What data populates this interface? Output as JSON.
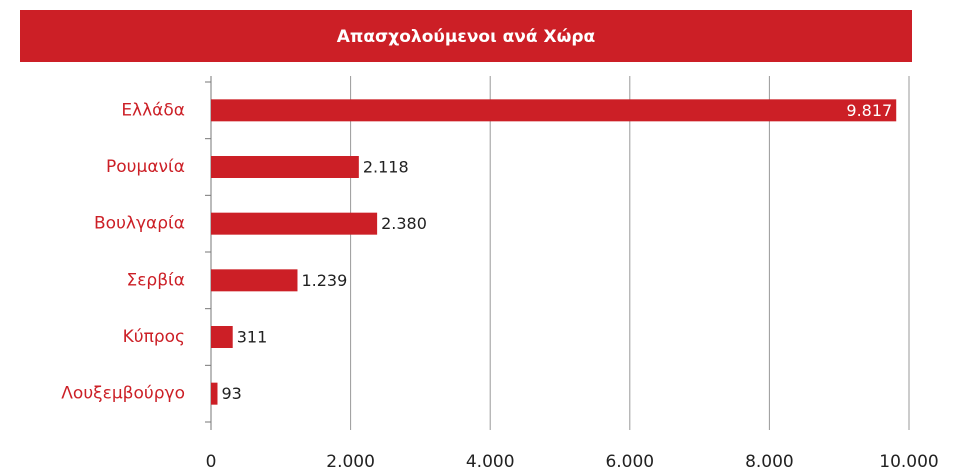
{
  "chart_data": {
    "type": "bar",
    "orientation": "horizontal",
    "title": "Απασχολούμενοι ανά Χώρα",
    "categories": [
      "Ελλάδα",
      "Ρουμανία",
      "Βουλγαρία",
      "Σερβία",
      "Κύπρος",
      "Λουξεμβούργο"
    ],
    "values": [
      9817,
      2118,
      2380,
      1239,
      311,
      93
    ],
    "value_labels": [
      "9.817",
      "2.118",
      "2.380",
      "1.239",
      "311",
      "93"
    ],
    "color": "#cc1f26",
    "xlim": [
      0,
      10000
    ],
    "xticks": [
      0,
      {
        "value": 2000,
        "label": "2.000"
      },
      {
        "value": 4000,
        "label": "4.000"
      },
      {
        "value": 6000,
        "label": "6.000"
      },
      {
        "value": 8000,
        "label": "8.000"
      },
      {
        "value": 10000,
        "label": "10.000"
      }
    ],
    "grid": true
  }
}
